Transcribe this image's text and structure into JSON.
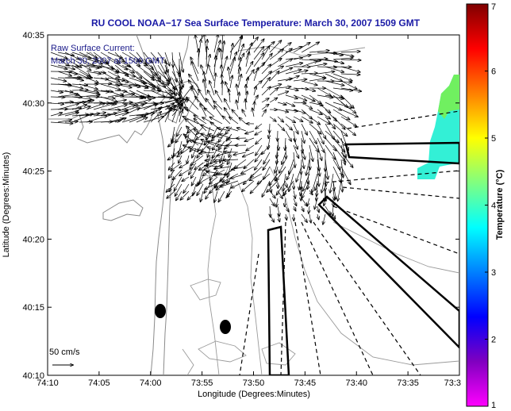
{
  "title": "RU COOL  NOAA−17  Sea Surface Temperature:  March 30, 2007 1509 GMT",
  "legend": {
    "line1": "Raw Surface Current:",
    "line2": "March 30, 2007 at 1500 GMT"
  },
  "scale_label": "50 cm/s",
  "x_axis": {
    "label": "Longitude (Degrees:Minutes)",
    "ticks": [
      "74:10",
      "74:05",
      "74:00",
      "73:55",
      "73:50",
      "73:45",
      "73:40",
      "73:35",
      "73:3"
    ]
  },
  "y_axis": {
    "label": "Latitude (Degrees:Minutes)",
    "ticks": [
      "40:35",
      "40:30",
      "40:25",
      "40:20",
      "40:15",
      "40:10"
    ]
  },
  "colorbar": {
    "label": "Temperature (°C)",
    "ticks": [
      "7",
      "6",
      "5",
      "4",
      "3",
      "2",
      "1"
    ],
    "colors": [
      "#7f0000",
      "#ff0000",
      "#ff8000",
      "#ffff00",
      "#80ff80",
      "#00ffff",
      "#0080ff",
      "#0000ff",
      "#8000c0",
      "#ff00ff"
    ]
  },
  "sst_patch_color": "#33f0d6",
  "sst_patch_edge_color": "#70f060"
}
